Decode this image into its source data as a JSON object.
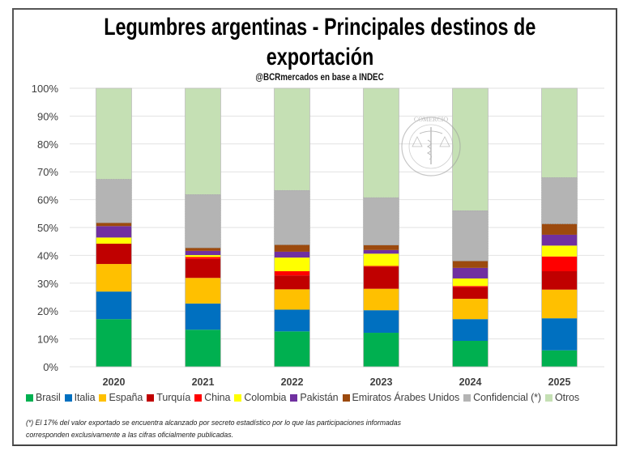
{
  "chart_data": {
    "type": "bar",
    "stacked": true,
    "percent_stacked": true,
    "title": "Legumbres argentinas - Principales destinos de exportación",
    "title_lines": [
      "Legumbres argentinas - Principales destinos de",
      "exportación"
    ],
    "subtitle": "@BCRmercados en base a INDEC",
    "xlabel": "",
    "ylabel": "",
    "ylim": [
      0,
      100
    ],
    "yticks": [
      "0%",
      "10%",
      "20%",
      "30%",
      "40%",
      "50%",
      "60%",
      "70%",
      "80%",
      "90%",
      "100%"
    ],
    "grid": true,
    "legend_position": "bottom",
    "categories": [
      "2020",
      "2021",
      "2022",
      "2023",
      "2024",
      "2025"
    ],
    "series": [
      {
        "name": "Brasil",
        "color": "#00B050",
        "values": [
          17.1,
          13.3,
          12.7,
          12.2,
          9.3,
          5.9
        ]
      },
      {
        "name": "Italia",
        "color": "#0070C0",
        "values": [
          9.9,
          9.4,
          7.8,
          8.1,
          7.8,
          11.5
        ]
      },
      {
        "name": "España",
        "color": "#FFC000",
        "values": [
          9.9,
          9.2,
          7.3,
          7.7,
          7.3,
          10.3
        ]
      },
      {
        "name": "Turquía",
        "color": "#C00000",
        "values": [
          7.3,
          6.8,
          5.0,
          8.0,
          4.2,
          6.6
        ]
      },
      {
        "name": "China",
        "color": "#FF0000",
        "values": [
          0.0,
          0.7,
          1.5,
          0.2,
          0.4,
          5.3
        ]
      },
      {
        "name": "Colombia",
        "color": "#FFFF00",
        "values": [
          2.2,
          0.7,
          4.9,
          4.4,
          2.7,
          3.9
        ]
      },
      {
        "name": "Pakistán",
        "color": "#7030A0",
        "values": [
          4.1,
          1.5,
          2.1,
          1.3,
          3.8,
          3.9
        ]
      },
      {
        "name": "Emiratos Árabes Unidos",
        "color": "#9C4A0E",
        "values": [
          1.2,
          1.1,
          2.5,
          1.8,
          2.5,
          3.9
        ]
      },
      {
        "name": "Confidencial (*)",
        "color": "#B4B4B4",
        "values": [
          15.7,
          19.2,
          19.6,
          17.1,
          18.1,
          16.7
        ]
      },
      {
        "name": "Otros",
        "color": "#C5E0B4",
        "values": [
          32.6,
          38.1,
          36.6,
          39.2,
          43.9,
          32.0
        ]
      }
    ]
  },
  "footnote": {
    "line1": "(*) El 17% del valor exportado se encuentra alcanzado por secreto estadístico por lo que las participaciones informadas",
    "line2": "corresponden exclusivamente a las cifras oficialmente publicadas."
  },
  "watermark": {
    "text": "BOLSA DE COMERCIO DE ROSARIO"
  }
}
